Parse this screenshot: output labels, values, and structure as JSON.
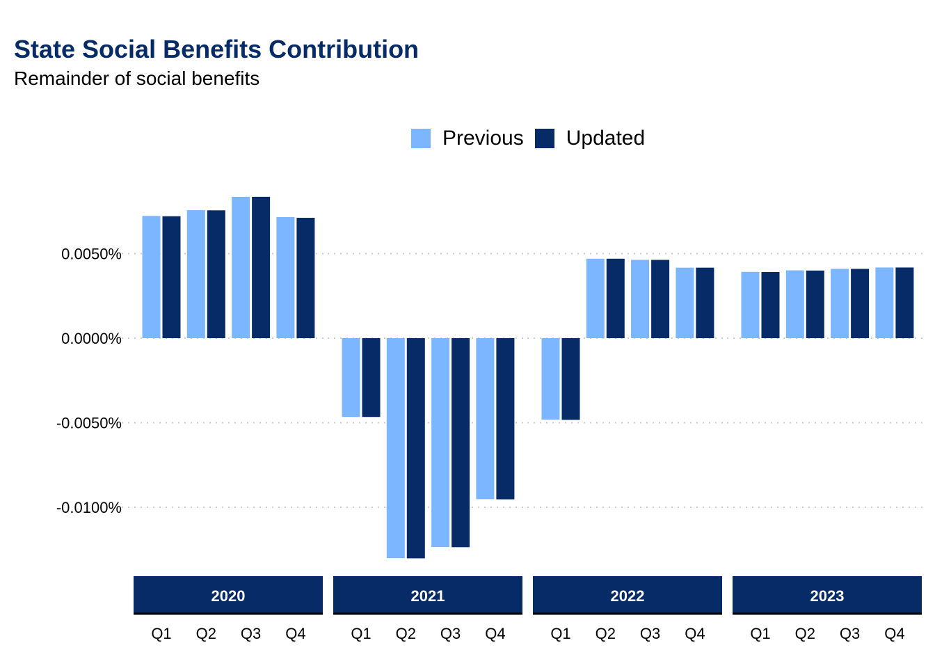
{
  "title": "State Social Benefits Contribution",
  "subtitle": "Remainder of social benefits",
  "legend": {
    "previous": "Previous",
    "updated": "Updated"
  },
  "colors": {
    "previous": "#7cb6ff",
    "updated": "#062b66",
    "facet": "#062b66",
    "grid": "#cccccc"
  },
  "chart_data": {
    "type": "bar",
    "title": "State Social Benefits Contribution",
    "subtitle": "Remainder of social benefits",
    "xlabel": "",
    "ylabel": "",
    "facets": [
      "2020",
      "2021",
      "2022",
      "2023"
    ],
    "categories": [
      "Q1",
      "Q2",
      "Q3",
      "Q4"
    ],
    "y_ticks": [
      0.005,
      0.0,
      -0.005,
      -0.01
    ],
    "y_tick_labels": [
      "0.0050%",
      "0.0000%",
      "-0.0050%",
      "-0.0100%"
    ],
    "ylim": [
      -0.0135,
      0.0085
    ],
    "grid": true,
    "legend_position": "top",
    "series": [
      {
        "name": "Previous",
        "values": [
          [
            0.00723,
            0.00757,
            0.00836,
            0.00716
          ],
          [
            -0.00466,
            -0.01301,
            -0.01235,
            -0.00952
          ],
          [
            -0.00482,
            0.0047,
            0.00463,
            0.00417
          ],
          [
            0.00392,
            0.00401,
            0.0041,
            0.00418
          ]
        ]
      },
      {
        "name": "Updated",
        "values": [
          [
            0.00721,
            0.00756,
            0.00836,
            0.00712
          ],
          [
            -0.00466,
            -0.01302,
            -0.01236,
            -0.00953
          ],
          [
            -0.00483,
            0.0047,
            0.00463,
            0.00417
          ],
          [
            0.00391,
            0.004,
            0.0041,
            0.00418
          ]
        ]
      }
    ]
  }
}
